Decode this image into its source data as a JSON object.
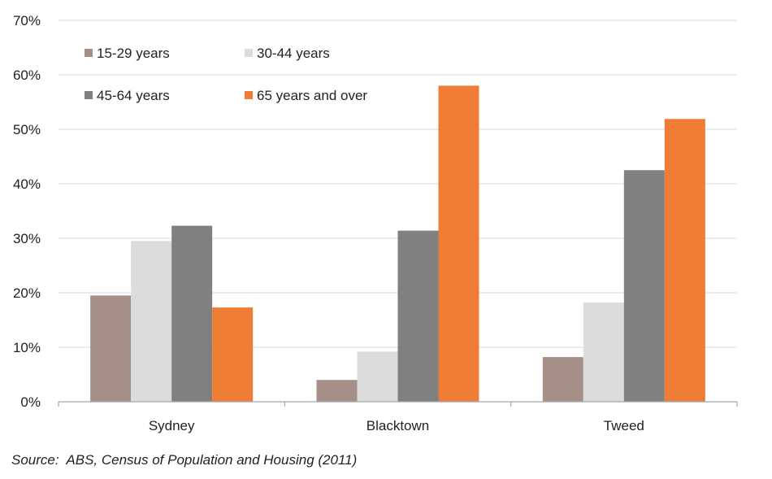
{
  "chart_data": {
    "type": "bar",
    "categories": [
      "Sydney",
      "Blacktown",
      "Tweed"
    ],
    "series": [
      {
        "name": "15-29 years",
        "values": [
          19.5,
          4,
          8.2
        ],
        "color": "#a58f87"
      },
      {
        "name": "30-44 years",
        "values": [
          29.5,
          9.2,
          18.2
        ],
        "color": "#dcdcdc"
      },
      {
        "name": "45-64 years",
        "values": [
          32.3,
          31.4,
          42.5
        ],
        "color": "#808080"
      },
      {
        "name": "65 years and over",
        "values": [
          17.3,
          58,
          51.9
        ],
        "color": "#f07d36"
      }
    ],
    "yticks": [
      "0%",
      "10%",
      "20%",
      "30%",
      "40%",
      "50%",
      "60%",
      "70%"
    ],
    "ylim": [
      0,
      70
    ],
    "grid": true,
    "legend_position": "top-left"
  },
  "source_note": "Source:  ABS, Census of Population and Housing (2011)"
}
